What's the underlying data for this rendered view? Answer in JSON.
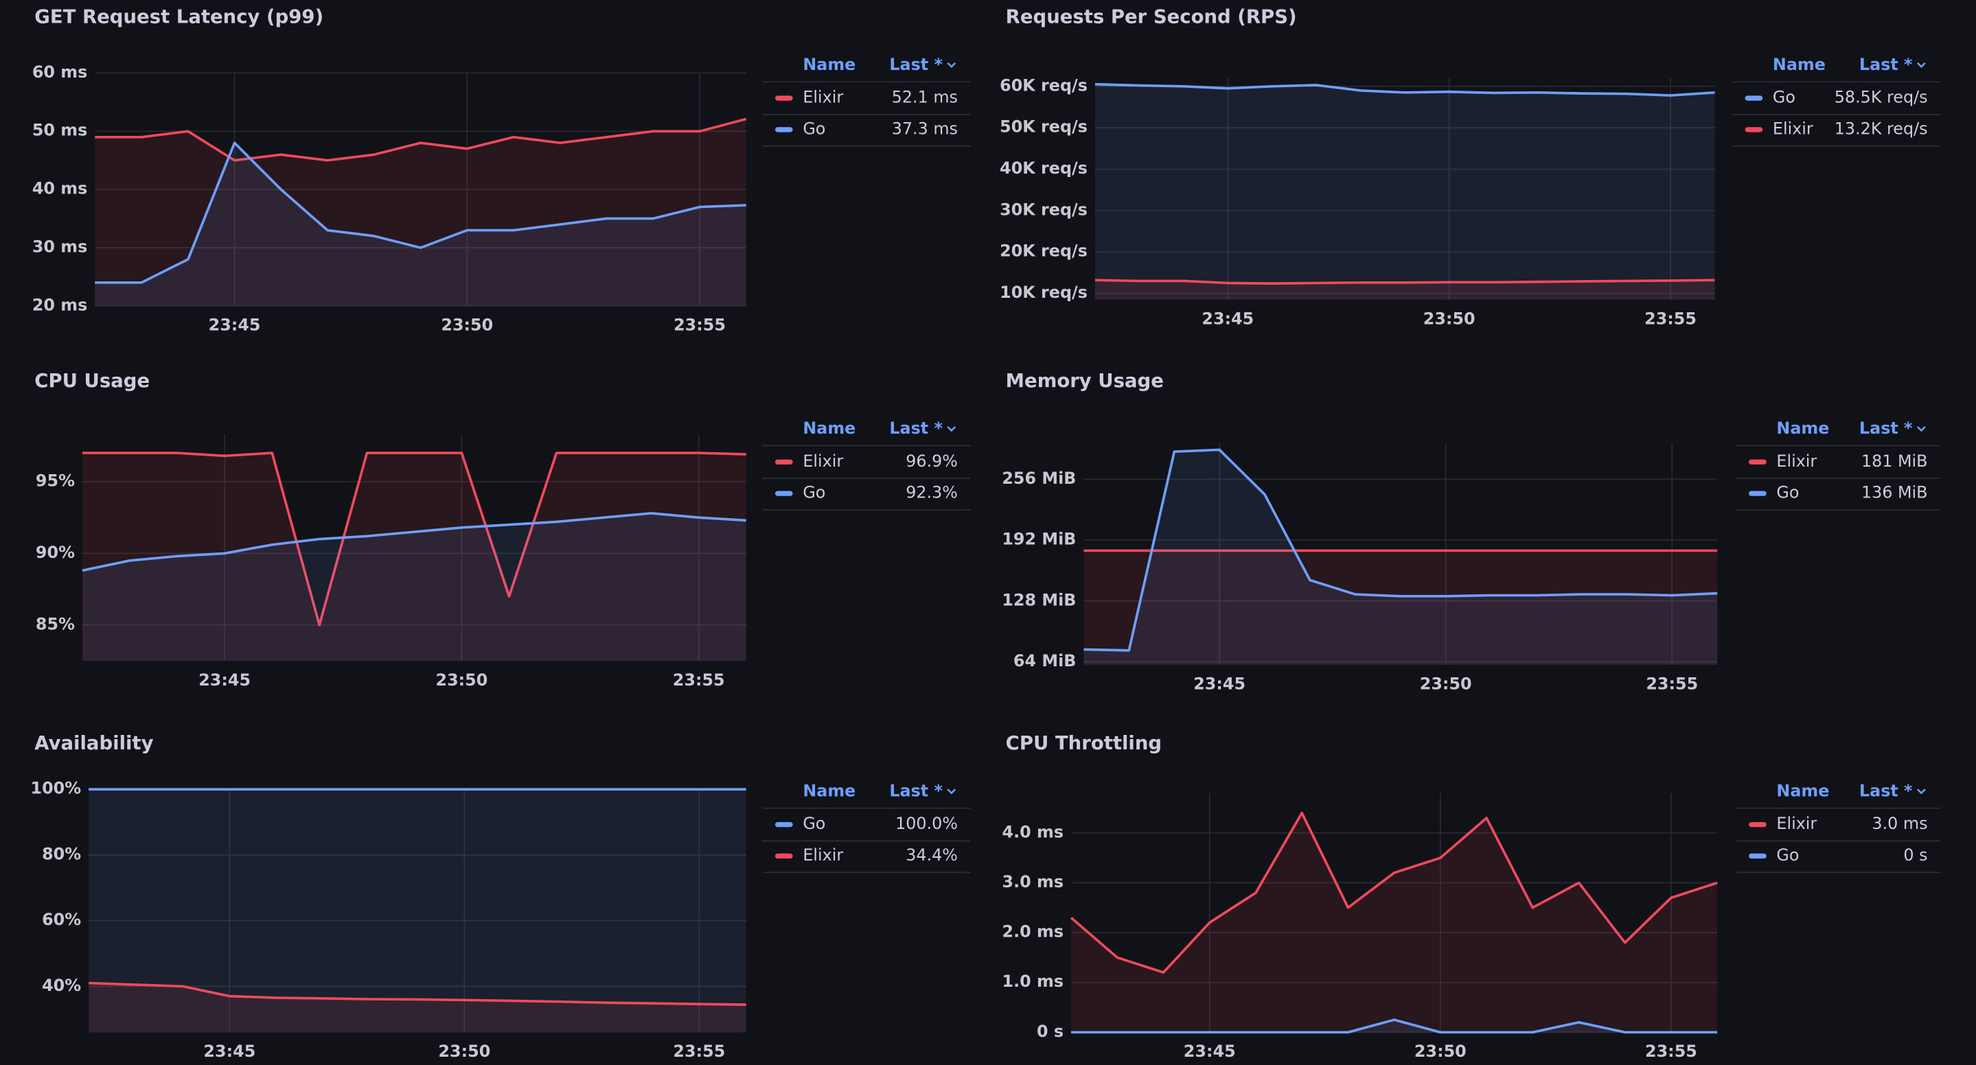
{
  "chart_data": [
    {
      "type": "line",
      "title": "GET Request Latency (p99)",
      "x": [
        "23:42",
        "23:43",
        "23:44",
        "23:45",
        "23:46",
        "23:47",
        "23:48",
        "23:49",
        "23:50",
        "23:51",
        "23:52",
        "23:53",
        "23:54",
        "23:55",
        "23:56"
      ],
      "xlim": [
        "23:42",
        "23:56"
      ],
      "xticks": [
        "23:45",
        "23:50",
        "23:55"
      ],
      "ylim": [
        20,
        60
      ],
      "yticks": [
        {
          "value": 20,
          "label": "20 ms"
        },
        {
          "value": 30,
          "label": "30 ms"
        },
        {
          "value": 40,
          "label": "40 ms"
        },
        {
          "value": 50,
          "label": "50 ms"
        },
        {
          "value": 60,
          "label": "60 ms"
        }
      ],
      "grid": true,
      "legend_columns": [
        "Name",
        "Last *"
      ],
      "series": [
        {
          "name": "Elixir",
          "color": "#f2495c",
          "last": "52.1 ms",
          "values": [
            49,
            49,
            50,
            45,
            46,
            45,
            46,
            48,
            47,
            49,
            48,
            49,
            50,
            50,
            52.1
          ]
        },
        {
          "name": "Go",
          "color": "#6e9fff",
          "last": "37.3 ms",
          "values": [
            24,
            24,
            28,
            48,
            40,
            33,
            32,
            30,
            33,
            33,
            34,
            35,
            35,
            37,
            37.3
          ]
        }
      ]
    },
    {
      "type": "line",
      "title": "Requests Per Second (RPS)",
      "x": [
        "23:42",
        "23:43",
        "23:44",
        "23:45",
        "23:46",
        "23:47",
        "23:48",
        "23:49",
        "23:50",
        "23:51",
        "23:52",
        "23:53",
        "23:54",
        "23:55",
        "23:56"
      ],
      "xlim": [
        "23:42",
        "23:56"
      ],
      "xticks": [
        "23:45",
        "23:50",
        "23:55"
      ],
      "ylim": [
        8500,
        62000
      ],
      "yticks": [
        {
          "value": 10000,
          "label": "10K req/s"
        },
        {
          "value": 20000,
          "label": "20K req/s"
        },
        {
          "value": 30000,
          "label": "30K req/s"
        },
        {
          "value": 40000,
          "label": "40K req/s"
        },
        {
          "value": 50000,
          "label": "50K req/s"
        },
        {
          "value": 60000,
          "label": "60K req/s"
        }
      ],
      "grid": true,
      "legend_columns": [
        "Name",
        "Last *"
      ],
      "series": [
        {
          "name": "Go",
          "color": "#6e9fff",
          "last": "58.5K req/s",
          "values": [
            60500,
            60200,
            60000,
            59500,
            60000,
            60300,
            59000,
            58500,
            58700,
            58400,
            58500,
            58300,
            58200,
            57800,
            58500
          ]
        },
        {
          "name": "Elixir",
          "color": "#f2495c",
          "last": "13.2K req/s",
          "values": [
            13200,
            13000,
            13000,
            12500,
            12400,
            12500,
            12600,
            12600,
            12700,
            12700,
            12800,
            12900,
            13000,
            13100,
            13200
          ]
        }
      ]
    },
    {
      "type": "line",
      "title": "CPU Usage",
      "x": [
        "23:42",
        "23:43",
        "23:44",
        "23:45",
        "23:46",
        "23:47",
        "23:48",
        "23:49",
        "23:50",
        "23:51",
        "23:52",
        "23:53",
        "23:54",
        "23:55",
        "23:56"
      ],
      "xlim": [
        "23:42",
        "23:56"
      ],
      "xticks": [
        "23:45",
        "23:50",
        "23:55"
      ],
      "ylim": [
        82.5,
        98.3
      ],
      "yticks": [
        {
          "value": 85,
          "label": "85%"
        },
        {
          "value": 90,
          "label": "90%"
        },
        {
          "value": 95,
          "label": "95%"
        }
      ],
      "grid": true,
      "legend_columns": [
        "Name",
        "Last *"
      ],
      "series": [
        {
          "name": "Elixir",
          "color": "#f2495c",
          "last": "96.9%",
          "values": [
            97,
            97,
            97,
            96.8,
            97,
            85,
            97,
            97,
            97,
            87,
            97,
            97,
            97,
            97,
            96.9
          ]
        },
        {
          "name": "Go",
          "color": "#6e9fff",
          "last": "92.3%",
          "values": [
            88.8,
            89.5,
            89.8,
            90,
            90.6,
            91,
            91.2,
            91.5,
            91.8,
            92,
            92.2,
            92.5,
            92.8,
            92.5,
            92.3
          ]
        }
      ]
    },
    {
      "type": "line",
      "title": "Memory Usage",
      "x": [
        "23:42",
        "23:43",
        "23:44",
        "23:45",
        "23:46",
        "23:47",
        "23:48",
        "23:49",
        "23:50",
        "23:51",
        "23:52",
        "23:53",
        "23:54",
        "23:55",
        "23:56"
      ],
      "xlim": [
        "23:42",
        "23:56"
      ],
      "xticks": [
        "23:45",
        "23:50",
        "23:55"
      ],
      "ylim": [
        61,
        294
      ],
      "yticks": [
        {
          "value": 64,
          "label": "64 MiB"
        },
        {
          "value": 128,
          "label": "128 MiB"
        },
        {
          "value": 192,
          "label": "192 MiB"
        },
        {
          "value": 256,
          "label": "256 MiB"
        }
      ],
      "grid": true,
      "legend_columns": [
        "Name",
        "Last *"
      ],
      "series": [
        {
          "name": "Elixir",
          "color": "#f2495c",
          "last": "181 MiB",
          "values": [
            181,
            181,
            181,
            181,
            181,
            181,
            181,
            181,
            181,
            181,
            181,
            181,
            181,
            181,
            181
          ]
        },
        {
          "name": "Go",
          "color": "#6e9fff",
          "last": "136 MiB",
          "values": [
            77,
            76,
            285,
            287,
            240,
            150,
            135,
            133,
            133,
            134,
            134,
            135,
            135,
            134,
            136
          ]
        }
      ]
    },
    {
      "type": "line",
      "title": "Availability",
      "x": [
        "23:42",
        "23:43",
        "23:44",
        "23:45",
        "23:46",
        "23:47",
        "23:48",
        "23:49",
        "23:50",
        "23:51",
        "23:52",
        "23:53",
        "23:54",
        "23:55",
        "23:56"
      ],
      "xlim": [
        "23:42",
        "23:56"
      ],
      "xticks": [
        "23:45",
        "23:50",
        "23:55"
      ],
      "ylim": [
        26,
        100
      ],
      "yticks": [
        {
          "value": 40,
          "label": "40%"
        },
        {
          "value": 60,
          "label": "60%"
        },
        {
          "value": 80,
          "label": "80%"
        },
        {
          "value": 100,
          "label": "100%"
        }
      ],
      "grid": true,
      "legend_columns": [
        "Name",
        "Last *"
      ],
      "series": [
        {
          "name": "Go",
          "color": "#6e9fff",
          "last": "100.0%",
          "values": [
            100,
            100,
            100,
            100,
            100,
            100,
            100,
            100,
            100,
            100,
            100,
            100,
            100,
            100,
            100
          ]
        },
        {
          "name": "Elixir",
          "color": "#f2495c",
          "last": "34.4%",
          "values": [
            41,
            40.5,
            40,
            37,
            36.5,
            36.3,
            36.1,
            36,
            35.8,
            35.6,
            35.3,
            35,
            34.8,
            34.6,
            34.4
          ]
        }
      ]
    },
    {
      "type": "line",
      "title": "CPU Throttling",
      "x": [
        "23:42",
        "23:43",
        "23:44",
        "23:45",
        "23:46",
        "23:47",
        "23:48",
        "23:49",
        "23:50",
        "23:51",
        "23:52",
        "23:53",
        "23:54",
        "23:55",
        "23:56"
      ],
      "xlim": [
        "23:42",
        "23:56"
      ],
      "xticks": [
        "23:45",
        "23:50",
        "23:55"
      ],
      "ylim": [
        0,
        4.8
      ],
      "yticks": [
        {
          "value": 0,
          "label": "0 s"
        },
        {
          "value": 1,
          "label": "1.0 ms"
        },
        {
          "value": 2,
          "label": "2.0 ms"
        },
        {
          "value": 3,
          "label": "3.0 ms"
        },
        {
          "value": 4,
          "label": "4.0 ms"
        }
      ],
      "grid": true,
      "legend_columns": [
        "Name",
        "Last *"
      ],
      "series": [
        {
          "name": "Elixir",
          "color": "#f2495c",
          "last": "3.0 ms",
          "values": [
            2.3,
            1.5,
            1.2,
            2.2,
            2.8,
            4.4,
            2.5,
            3.2,
            3.5,
            4.3,
            2.5,
            3.0,
            1.8,
            2.7,
            3.0
          ]
        },
        {
          "name": "Go",
          "color": "#6e9fff",
          "last": "0 s",
          "values": [
            0,
            0,
            0,
            0,
            0,
            0,
            0,
            0.25,
            0,
            0,
            0,
            0.2,
            0,
            0,
            0
          ]
        }
      ]
    }
  ]
}
